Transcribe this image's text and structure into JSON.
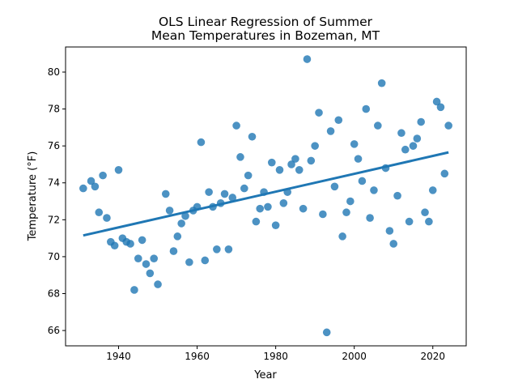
{
  "chart_data": {
    "type": "scatter",
    "title_lines": [
      "OLS Linear Regression of Summer",
      "Mean Temperatures in Bozeman, MT"
    ],
    "xlabel": "Year",
    "ylabel": "Temperature (°F)",
    "xlim": [
      1926.5,
      2028.5
    ],
    "ylim": [
      65.17,
      81.36
    ],
    "xticks": [
      1940,
      1960,
      1980,
      2000,
      2020
    ],
    "yticks": [
      66,
      68,
      70,
      72,
      74,
      76,
      78,
      80
    ],
    "grid": false,
    "point_color": "#1f77b4",
    "line_color": "#1f77b4",
    "regression_line": {
      "x": [
        1931,
        2024
      ],
      "y": [
        71.15,
        75.65
      ]
    },
    "points": [
      [
        1931,
        73.7
      ],
      [
        1933,
        74.1
      ],
      [
        1934,
        73.8
      ],
      [
        1935,
        72.4
      ],
      [
        1936,
        74.4
      ],
      [
        1937,
        72.1
      ],
      [
        1938,
        70.8
      ],
      [
        1939,
        70.6
      ],
      [
        1940,
        74.7
      ],
      [
        1941,
        71.0
      ],
      [
        1942,
        70.8
      ],
      [
        1943,
        70.7
      ],
      [
        1944,
        68.2
      ],
      [
        1945,
        69.9
      ],
      [
        1946,
        70.9
      ],
      [
        1947,
        69.6
      ],
      [
        1948,
        69.1
      ],
      [
        1949,
        69.9
      ],
      [
        1950,
        68.5
      ],
      [
        1952,
        73.4
      ],
      [
        1953,
        72.5
      ],
      [
        1954,
        70.3
      ],
      [
        1955,
        71.1
      ],
      [
        1956,
        71.8
      ],
      [
        1957,
        72.2
      ],
      [
        1958,
        69.7
      ],
      [
        1959,
        72.5
      ],
      [
        1960,
        72.7
      ],
      [
        1961,
        76.2
      ],
      [
        1962,
        69.8
      ],
      [
        1963,
        73.5
      ],
      [
        1964,
        72.7
      ],
      [
        1965,
        70.4
      ],
      [
        1966,
        72.9
      ],
      [
        1967,
        73.4
      ],
      [
        1968,
        70.4
      ],
      [
        1969,
        73.2
      ],
      [
        1970,
        77.1
      ],
      [
        1971,
        75.4
      ],
      [
        1972,
        73.7
      ],
      [
        1973,
        74.4
      ],
      [
        1974,
        76.5
      ],
      [
        1975,
        71.9
      ],
      [
        1976,
        72.6
      ],
      [
        1977,
        73.5
      ],
      [
        1978,
        72.7
      ],
      [
        1979,
        75.1
      ],
      [
        1980,
        71.7
      ],
      [
        1981,
        74.7
      ],
      [
        1982,
        72.9
      ],
      [
        1983,
        73.5
      ],
      [
        1984,
        75.0
      ],
      [
        1985,
        75.3
      ],
      [
        1986,
        74.7
      ],
      [
        1987,
        72.6
      ],
      [
        1988,
        80.7
      ],
      [
        1989,
        75.2
      ],
      [
        1990,
        76.0
      ],
      [
        1991,
        77.8
      ],
      [
        1992,
        72.3
      ],
      [
        1993,
        65.9
      ],
      [
        1994,
        76.8
      ],
      [
        1995,
        73.8
      ],
      [
        1996,
        77.4
      ],
      [
        1997,
        71.1
      ],
      [
        1998,
        72.4
      ],
      [
        1999,
        73.0
      ],
      [
        2000,
        76.1
      ],
      [
        2001,
        75.3
      ],
      [
        2002,
        74.1
      ],
      [
        2003,
        78.0
      ],
      [
        2004,
        72.1
      ],
      [
        2005,
        73.6
      ],
      [
        2006,
        77.1
      ],
      [
        2007,
        79.4
      ],
      [
        2008,
        74.8
      ],
      [
        2009,
        71.4
      ],
      [
        2010,
        70.7
      ],
      [
        2011,
        73.3
      ],
      [
        2012,
        76.7
      ],
      [
        2013,
        75.8
      ],
      [
        2014,
        71.9
      ],
      [
        2015,
        76.0
      ],
      [
        2016,
        76.4
      ],
      [
        2017,
        77.3
      ],
      [
        2018,
        72.4
      ],
      [
        2019,
        71.9
      ],
      [
        2020,
        73.6
      ],
      [
        2021,
        78.4
      ],
      [
        2022,
        78.1
      ],
      [
        2023,
        74.5
      ],
      [
        2024,
        77.1
      ]
    ]
  }
}
